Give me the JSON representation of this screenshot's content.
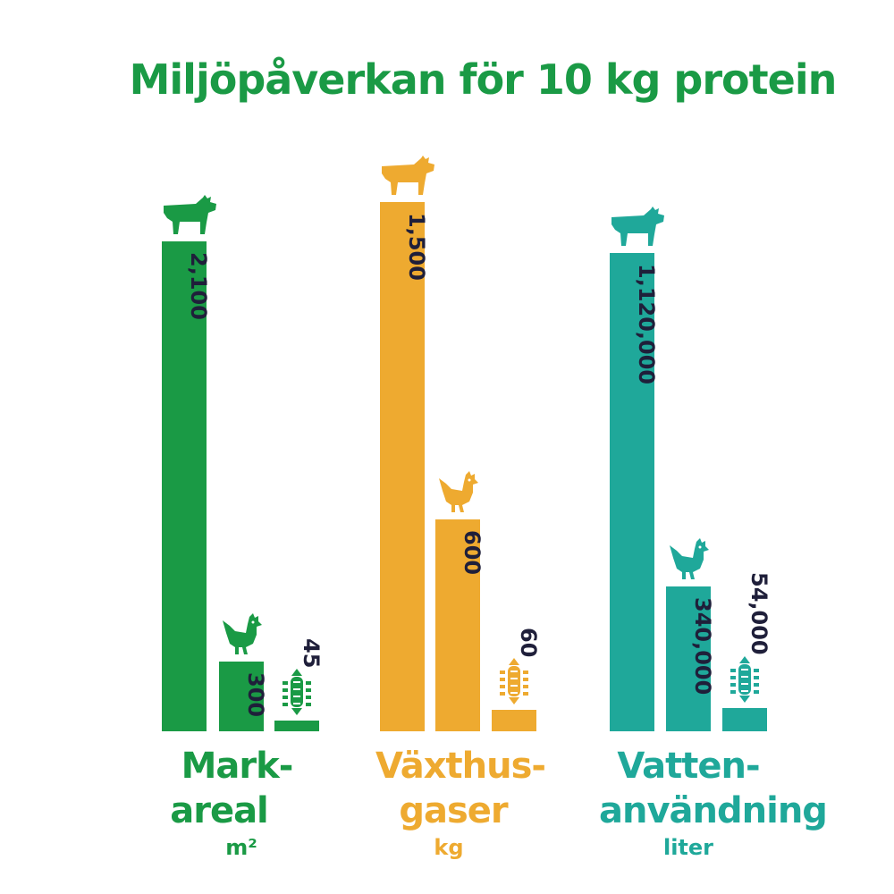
{
  "title": "Miljöpåverkan för 10 kg protein",
  "colors": {
    "title": "#1a9a45",
    "value_text": "#1f1f3a",
    "white": "#ffffff"
  },
  "chart_data": [
    {
      "type": "bar",
      "label_line1": "Mark-",
      "label_line2": "areal",
      "unit": "m²",
      "color": "#1a9a45",
      "categories": [
        "cow-icon",
        "chicken-icon",
        "insect-icon"
      ],
      "values": [
        2100,
        300,
        45
      ],
      "value_labels": [
        "2,100",
        "300",
        "45"
      ]
    },
    {
      "type": "bar",
      "label_line1": "Växthus-",
      "label_line2": "gaser",
      "unit": "kg",
      "color": "#eeaa30",
      "categories": [
        "cow-icon",
        "chicken-icon",
        "insect-icon"
      ],
      "values": [
        1500,
        600,
        60
      ],
      "value_labels": [
        "1,500",
        "600",
        "60"
      ]
    },
    {
      "type": "bar",
      "label_line1": "Vatten-",
      "label_line2": "användning",
      "unit": "liter",
      "color": "#1fa89a",
      "categories": [
        "cow-icon",
        "chicken-icon",
        "insect-icon"
      ],
      "values": [
        1120000,
        340000,
        54000
      ],
      "value_labels": [
        "1,120,000",
        "340,000",
        "54,000"
      ]
    }
  ]
}
